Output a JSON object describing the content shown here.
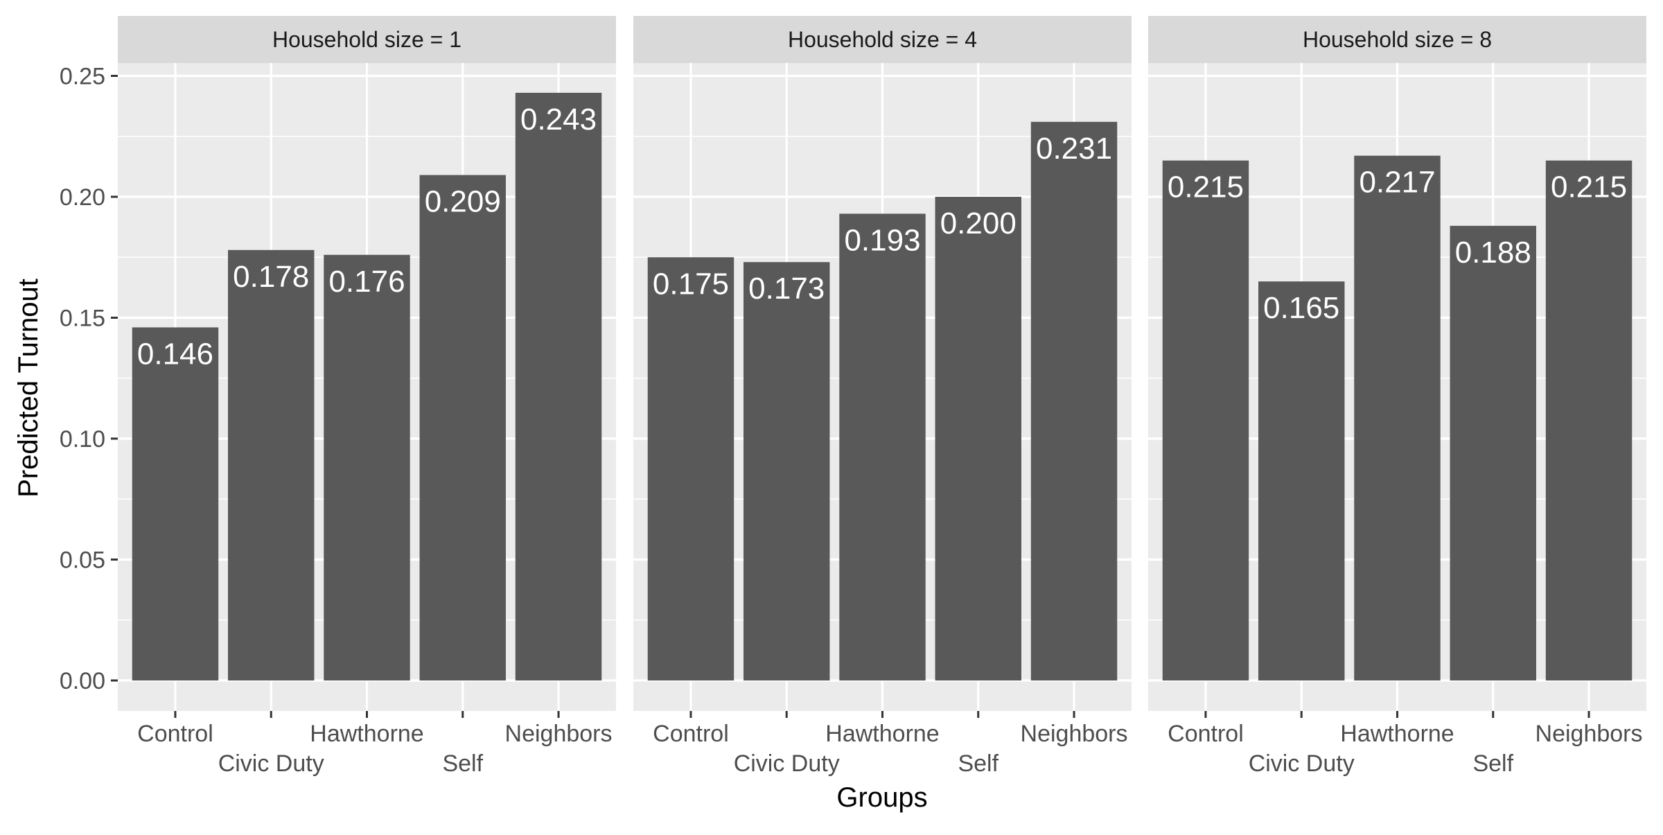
{
  "chart_data": {
    "type": "bar",
    "xlabel": "Groups",
    "ylabel": "Predicted Turnout",
    "ylim": [
      0,
      0.26
    ],
    "yticks": [
      "0.00",
      "0.05",
      "0.10",
      "0.15",
      "0.20",
      "0.25"
    ],
    "grid": true,
    "categories": [
      "Control",
      "Civic Duty",
      "Hawthorne",
      "Self",
      "Neighbors"
    ],
    "panels": [
      {
        "strip": "Household size = 1",
        "values": [
          0.146,
          0.178,
          0.176,
          0.209,
          0.243
        ],
        "labels": [
          "0.146",
          "0.178",
          "0.176",
          "0.209",
          "0.243"
        ]
      },
      {
        "strip": "Household size = 4",
        "values": [
          0.175,
          0.173,
          0.193,
          0.2,
          0.231
        ],
        "labels": [
          "0.175",
          "0.173",
          "0.193",
          "0.200",
          "0.231"
        ]
      },
      {
        "strip": "Household size = 8",
        "values": [
          0.215,
          0.165,
          0.217,
          0.188,
          0.215
        ],
        "labels": [
          "0.215",
          "0.165",
          "0.217",
          "0.188",
          "0.215"
        ]
      }
    ],
    "colors": {
      "bar": "#595959",
      "panel_bg": "#ebebeb",
      "strip_bg": "#d9d9d9",
      "grid": "#ffffff",
      "bar_label": "#ffffff",
      "axis_text": "#4d4d4d",
      "title_text": "#000000",
      "strip_text": "#1a1a1a"
    }
  }
}
